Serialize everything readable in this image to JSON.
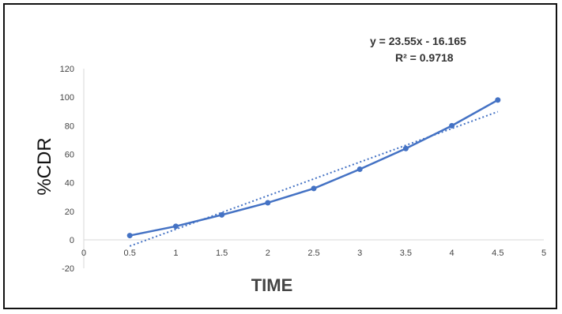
{
  "chart_data": {
    "type": "scatter",
    "title": "",
    "xlabel": "TIME",
    "ylabel": "%CDR",
    "xlim": [
      0,
      5
    ],
    "ylim": [
      -20,
      120
    ],
    "x_ticks": [
      "0",
      "0.5",
      "1",
      "1.5",
      "2",
      "2.5",
      "3",
      "3.5",
      "4",
      "4.5",
      "5"
    ],
    "y_ticks": [
      "-20",
      "0",
      "20",
      "40",
      "60",
      "80",
      "100",
      "120"
    ],
    "grid": false,
    "series": [
      {
        "x": [
          0.5,
          1,
          1.5,
          2,
          2.5,
          3,
          3.5,
          4,
          4.5
        ],
        "y": [
          3,
          9.5,
          17.5,
          26,
          36,
          49.5,
          64,
          80,
          98
        ],
        "color": "#4472c4",
        "marker": "circle",
        "line": "solid"
      }
    ],
    "trendline": {
      "type": "linear",
      "slope": 23.55,
      "intercept": -16.165,
      "x_range": [
        0.5,
        4.5
      ],
      "color": "#4472c4",
      "line": "dotted"
    },
    "annotations": {
      "equation": "y = 23.55x - 16.165",
      "r_squared": "R² = 0.9718"
    }
  }
}
